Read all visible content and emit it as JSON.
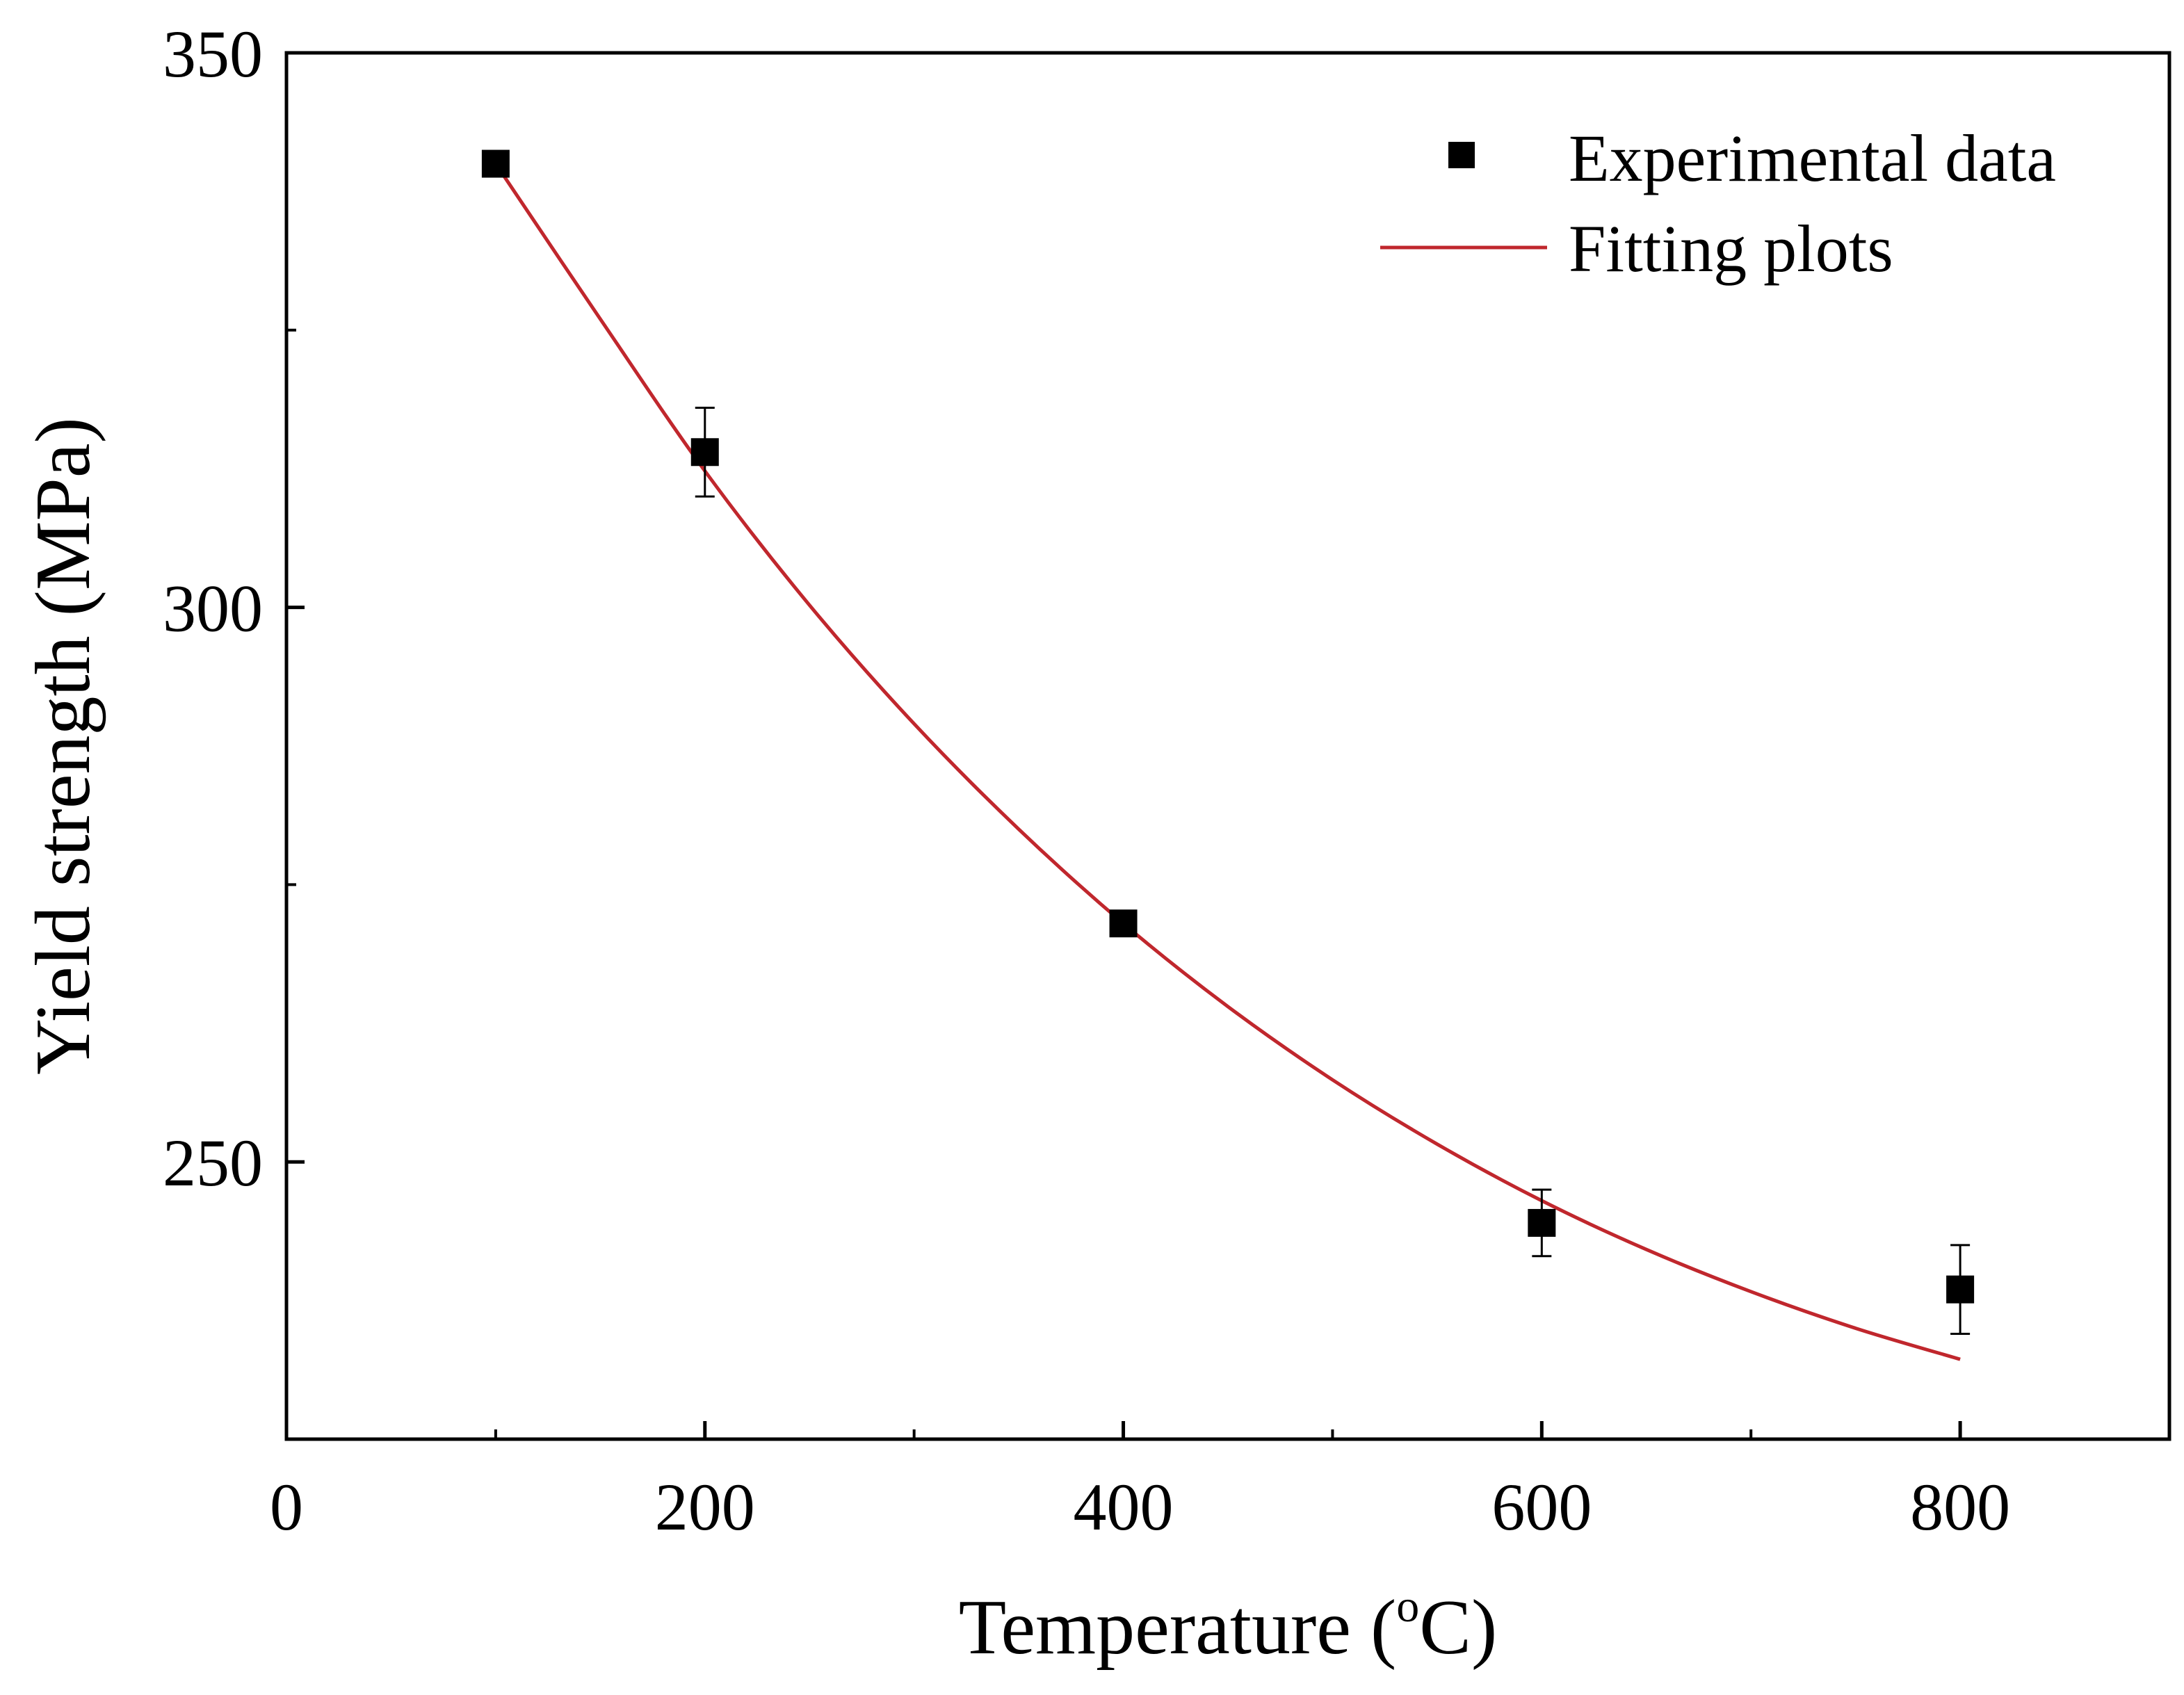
{
  "chart_data": {
    "type": "scatter",
    "title": "",
    "xlabel": "Temperature (",
    "xlabel_sup": "o",
    "xlabel_end": "C)",
    "ylabel": "Yield strength (MPa)",
    "xlim": [
      0,
      900
    ],
    "ylim": [
      225,
      350
    ],
    "x_ticks": [
      0,
      200,
      400,
      600,
      800
    ],
    "x_minor_ticks": [
      100,
      300,
      500,
      700
    ],
    "y_ticks": [
      250,
      300,
      350
    ],
    "y_minor_ticks": [
      275,
      325
    ],
    "x_tick_labels": [
      "0",
      "200",
      "400",
      "600",
      "800"
    ],
    "y_tick_labels": [
      "250",
      "300",
      "350"
    ],
    "series": [
      {
        "name": "Experimental data",
        "kind": "points",
        "x": [
          100,
          200,
          400,
          600,
          800
        ],
        "y": [
          340,
          314,
          271.5,
          244.5,
          238.5
        ],
        "error": [
          0,
          4,
          0,
          3,
          4
        ]
      },
      {
        "name": "Fitting plots",
        "kind": "line",
        "color": "#c0272d",
        "x": [
          100,
          150,
          200,
          250,
          300,
          350,
          400,
          450,
          500,
          550,
          600,
          650,
          700,
          750,
          800
        ],
        "y": [
          340,
          326,
          312.3,
          300.2,
          289.5,
          280,
          271.5,
          264,
          257.4,
          251.6,
          246.5,
          242.1,
          238.3,
          235,
          232.2
        ]
      }
    ],
    "legend": {
      "position": "top-right",
      "entries": [
        "Experimental data",
        "Fitting plots"
      ]
    }
  }
}
